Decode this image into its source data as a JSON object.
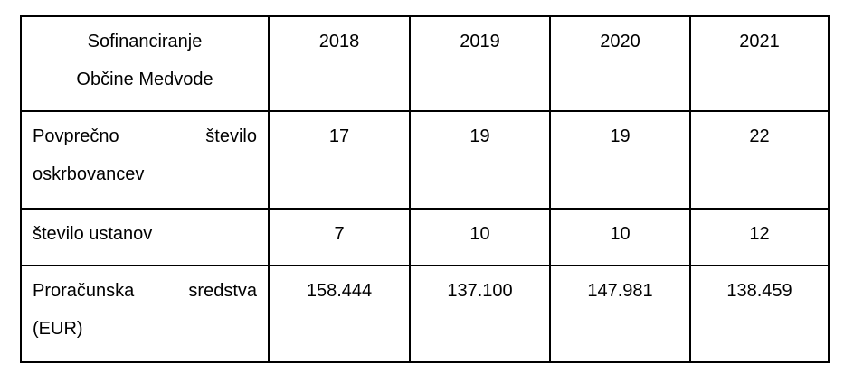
{
  "table": {
    "title": "Sofinanciranje\nObčine Medvode",
    "years": [
      "2018",
      "2019",
      "2020",
      "2021"
    ],
    "rows": [
      {
        "label": "Povprečno število oskrbovancev",
        "values": [
          "17",
          "19",
          "19",
          "22"
        ]
      },
      {
        "label": "število ustanov",
        "values": [
          "7",
          "10",
          "10",
          "12"
        ]
      },
      {
        "label": "Proračunska sredstva (EUR)",
        "values": [
          "158.444",
          "137.100",
          "147.981",
          "138.459"
        ]
      }
    ]
  }
}
